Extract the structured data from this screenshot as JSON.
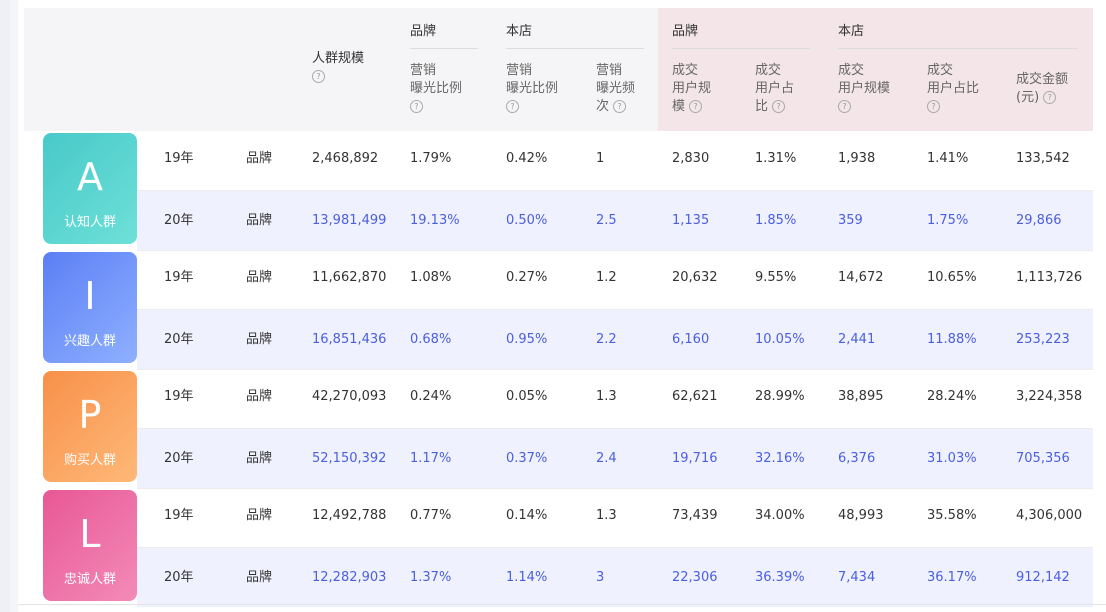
{
  "header": {
    "reach": "人群规模",
    "groups": {
      "brand": "品牌",
      "store": "本店",
      "deal_brand": "品牌",
      "deal_store": "本店"
    },
    "cols": [
      {
        "lines": [
          "营销",
          "曝光比例"
        ]
      },
      {
        "lines": [
          "营销",
          "曝光比例"
        ]
      },
      {
        "lines": [
          "营销",
          "曝光频",
          "次"
        ]
      },
      {
        "lines": [
          "成交",
          "用户规",
          "模"
        ]
      },
      {
        "lines": [
          "成交",
          "用户占",
          "比"
        ]
      },
      {
        "lines": [
          "成交",
          "用户规模"
        ]
      },
      {
        "lines": [
          "成交",
          "用户占比"
        ]
      },
      {
        "lines": [
          "成交金额",
          "(元)"
        ]
      }
    ]
  },
  "badges": [
    {
      "letter": "A",
      "name": "认知人群",
      "color_from": "#48c9c9",
      "color_to": "#6ee0d8"
    },
    {
      "letter": "I",
      "name": "兴趣人群",
      "color_from": "#5b7ff5",
      "color_to": "#8fb0ff"
    },
    {
      "letter": "P",
      "name": "购买人群",
      "color_from": "#f7904a",
      "color_to": "#ffb978"
    },
    {
      "letter": "L",
      "name": "忠诚人群",
      "color_from": "#e85795",
      "color_to": "#f38bb8"
    }
  ],
  "rows": [
    {
      "year": "19年",
      "type": "品牌",
      "v": [
        "2,468,892",
        "1.79%",
        "0.42%",
        "1",
        "2,830",
        "1.31%",
        "1,938",
        "1.41%",
        "133,542"
      ]
    },
    {
      "year": "20年",
      "type": "品牌",
      "v": [
        "13,981,499",
        "19.13%",
        "0.50%",
        "2.5",
        "1,135",
        "1.85%",
        "359",
        "1.75%",
        "29,866"
      ]
    },
    {
      "year": "19年",
      "type": "品牌",
      "v": [
        "11,662,870",
        "1.08%",
        "0.27%",
        "1.2",
        "20,632",
        "9.55%",
        "14,672",
        "10.65%",
        "1,113,726"
      ]
    },
    {
      "year": "20年",
      "type": "品牌",
      "v": [
        "16,851,436",
        "0.68%",
        "0.95%",
        "2.2",
        "6,160",
        "10.05%",
        "2,441",
        "11.88%",
        "253,223"
      ]
    },
    {
      "year": "19年",
      "type": "品牌",
      "v": [
        "42,270,093",
        "0.24%",
        "0.05%",
        "1.3",
        "62,621",
        "28.99%",
        "38,895",
        "28.24%",
        "3,224,358"
      ]
    },
    {
      "year": "20年",
      "type": "品牌",
      "v": [
        "52,150,392",
        "1.17%",
        "0.37%",
        "2.4",
        "19,716",
        "32.16%",
        "6,376",
        "31.03%",
        "705,356"
      ]
    },
    {
      "year": "19年",
      "type": "品牌",
      "v": [
        "12,492,788",
        "0.77%",
        "0.14%",
        "1.3",
        "73,439",
        "34.00%",
        "48,993",
        "35.58%",
        "4,306,000"
      ]
    },
    {
      "year": "20年",
      "type": "品牌",
      "v": [
        "12,282,903",
        "1.37%",
        "1.14%",
        "3",
        "22,306",
        "36.39%",
        "7,434",
        "36.17%",
        "912,142"
      ]
    }
  ]
}
